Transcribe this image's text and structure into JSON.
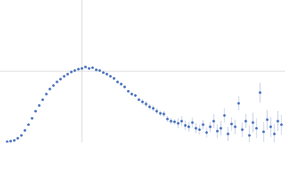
{
  "chart_data": {
    "type": "scatter",
    "color": "#3a66b8",
    "error_color": "#b7c6e6",
    "grid_color": "#d4d4d4",
    "xlim": [
      0,
      4
    ],
    "ylim": [
      0,
      2
    ],
    "xgrid": [
      1.15
    ],
    "ygrid": [
      1
    ],
    "x": [
      0.1,
      0.15,
      0.2,
      0.25,
      0.3,
      0.35,
      0.4,
      0.45,
      0.5,
      0.55,
      0.6,
      0.65,
      0.7,
      0.75,
      0.8,
      0.85,
      0.9,
      0.95,
      1.0,
      1.05,
      1.1,
      1.15,
      1.2,
      1.25,
      1.3,
      1.35,
      1.4,
      1.45,
      1.5,
      1.55,
      1.6,
      1.65,
      1.7,
      1.75,
      1.8,
      1.85,
      1.9,
      1.95,
      2.0,
      2.05,
      2.1,
      2.15,
      2.2,
      2.25,
      2.3,
      2.35,
      2.4,
      2.45,
      2.5,
      2.55,
      2.6,
      2.65,
      2.7,
      2.75,
      2.8,
      2.85,
      2.9,
      2.95,
      3.0,
      3.05,
      3.1,
      3.15,
      3.2,
      3.25,
      3.3,
      3.35,
      3.4,
      3.45,
      3.5,
      3.55,
      3.6,
      3.65,
      3.7,
      3.75,
      3.8,
      3.85,
      3.9,
      3.95
    ],
    "values": [
      0.01,
      0.02,
      0.03,
      0.06,
      0.1,
      0.17,
      0.25,
      0.34,
      0.44,
      0.52,
      0.6,
      0.68,
      0.75,
      0.8,
      0.85,
      0.89,
      0.93,
      0.96,
      0.99,
      1.01,
      1.03,
      1.04,
      1.06,
      1.04,
      1.05,
      1.02,
      1.01,
      0.98,
      0.96,
      0.93,
      0.9,
      0.85,
      0.82,
      0.78,
      0.72,
      0.68,
      0.66,
      0.6,
      0.57,
      0.54,
      0.5,
      0.48,
      0.44,
      0.41,
      0.4,
      0.33,
      0.3,
      0.29,
      0.27,
      0.3,
      0.24,
      0.22,
      0.28,
      0.2,
      0.18,
      0.25,
      0.14,
      0.22,
      0.3,
      0.16,
      0.2,
      0.38,
      0.12,
      0.26,
      0.22,
      0.55,
      0.18,
      0.3,
      0.1,
      0.28,
      0.2,
      0.7,
      0.15,
      0.32,
      0.22,
      0.12,
      0.3,
      0.25
    ],
    "errors": [
      0.005,
      0.005,
      0.005,
      0.005,
      0.005,
      0.005,
      0.005,
      0.005,
      0.005,
      0.005,
      0.005,
      0.005,
      0.005,
      0.005,
      0.005,
      0.005,
      0.005,
      0.005,
      0.01,
      0.01,
      0.01,
      0.01,
      0.01,
      0.01,
      0.01,
      0.01,
      0.01,
      0.01,
      0.02,
      0.02,
      0.02,
      0.02,
      0.02,
      0.02,
      0.02,
      0.02,
      0.02,
      0.02,
      0.04,
      0.04,
      0.04,
      0.04,
      0.04,
      0.04,
      0.04,
      0.04,
      0.04,
      0.04,
      0.07,
      0.07,
      0.07,
      0.07,
      0.07,
      0.07,
      0.07,
      0.07,
      0.07,
      0.07,
      0.1,
      0.1,
      0.1,
      0.1,
      0.1,
      0.1,
      0.1,
      0.1,
      0.1,
      0.1,
      0.14,
      0.14,
      0.14,
      0.14,
      0.14,
      0.14,
      0.14,
      0.14,
      0.14,
      0.14
    ]
  }
}
